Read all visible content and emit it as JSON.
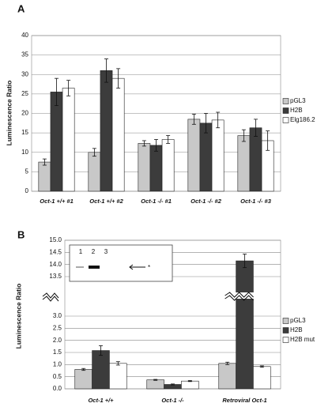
{
  "chart_data": [
    {
      "type": "bar",
      "panel": "A",
      "y_label": "Luminescence Ratio",
      "categories": [
        "Oct-1 +/+ #1",
        "Oct-1 +/+ #2",
        "Oct-1 -/- #1",
        "Oct-1 -/- #2",
        "Oct-1 -/- #3"
      ],
      "series": [
        {
          "name": "pGL3",
          "color": "#c8c8c8",
          "values": [
            7.5,
            10,
            12.3,
            18.5,
            14.3
          ],
          "errors": [
            0.8,
            1,
            0.7,
            1.3,
            1.5
          ]
        },
        {
          "name": "H2B",
          "color": "#3c3c3c",
          "values": [
            25.5,
            31,
            11.8,
            17.5,
            16.3
          ],
          "errors": [
            3.5,
            3,
            1.5,
            2.5,
            2.2
          ]
        },
        {
          "name": "Elg186.2",
          "color": "#ffffff",
          "values": [
            26.5,
            29,
            13.3,
            18.3,
            13
          ],
          "errors": [
            2,
            2.5,
            1,
            2,
            2.5
          ]
        }
      ],
      "ylim": [
        0,
        40
      ],
      "yticks": [
        0,
        5,
        10,
        15,
        20,
        25,
        30,
        35,
        40
      ],
      "grid": true
    },
    {
      "type": "bar",
      "panel": "B",
      "y_label": "Luminescence Ratio",
      "categories": [
        "Oct-1 +/+",
        "Oct-1 -/-",
        "Retroviral Oct-1"
      ],
      "series": [
        {
          "name": "pGL3",
          "color": "#c8c8c8",
          "values": [
            0.8,
            0.37,
            1.05
          ],
          "errors": [
            0.04,
            0.02,
            0.05
          ]
        },
        {
          "name": "H2B",
          "color": "#3c3c3c",
          "values": [
            1.58,
            0.18,
            14.15
          ],
          "errors": [
            0.2,
            0.02,
            0.28
          ]
        },
        {
          "name": "H2B mut",
          "color": "#ffffff",
          "values": [
            1.05,
            0.32,
            0.92
          ],
          "errors": [
            0.07,
            0.02,
            0.03
          ]
        }
      ],
      "ylim": [
        0,
        15
      ],
      "axis_break": [
        3.0,
        13.5
      ],
      "yticks": [
        {
          "value": 0,
          "label": "0.0"
        },
        0.5,
        {
          "value": 1,
          "label": "1.0"
        },
        1.5,
        {
          "value": 2,
          "label": "2.0"
        },
        2.5,
        {
          "value": 3,
          "label": "3.0"
        },
        13.5,
        {
          "value": 14,
          "label": "14.0"
        },
        14.5,
        {
          "value": 15,
          "label": "15.0"
        }
      ],
      "grid": true,
      "inset_lanes": [
        "1",
        "2",
        "3"
      ],
      "inset_marker": "*"
    }
  ]
}
